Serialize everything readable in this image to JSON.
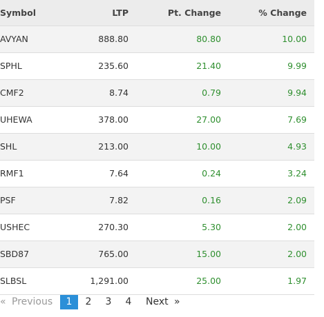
{
  "table": {
    "header": [
      "Symbol",
      "LTP",
      "Pt. Change",
      "% Change"
    ],
    "rows": [
      [
        "AVYAN",
        "888.80",
        "80.80",
        "10.00"
      ],
      [
        "SPHL",
        "235.60",
        "21.40",
        "9.99"
      ],
      [
        "CMF2",
        "8.74",
        "0.79",
        "9.94"
      ],
      [
        "UHEWA",
        "378.00",
        "27.00",
        "7.69"
      ],
      [
        "SHL",
        "213.00",
        "10.00",
        "4.93"
      ],
      [
        "RMF1",
        "7.64",
        "0.24",
        "3.24"
      ],
      [
        "PSF",
        "7.82",
        "0.16",
        "2.09"
      ],
      [
        "USHEC",
        "270.30",
        "5.30",
        "2.00"
      ],
      [
        "SBD87",
        "765.00",
        "15.00",
        "2.00"
      ],
      [
        "SLBSL",
        "1,291.00",
        "25.00",
        "1.97"
      ]
    ]
  },
  "pagination": {
    "first": "«",
    "previous": "Previous",
    "pages": [
      "1",
      "2",
      "3",
      "4"
    ],
    "next": "Next",
    "last": "»"
  }
}
